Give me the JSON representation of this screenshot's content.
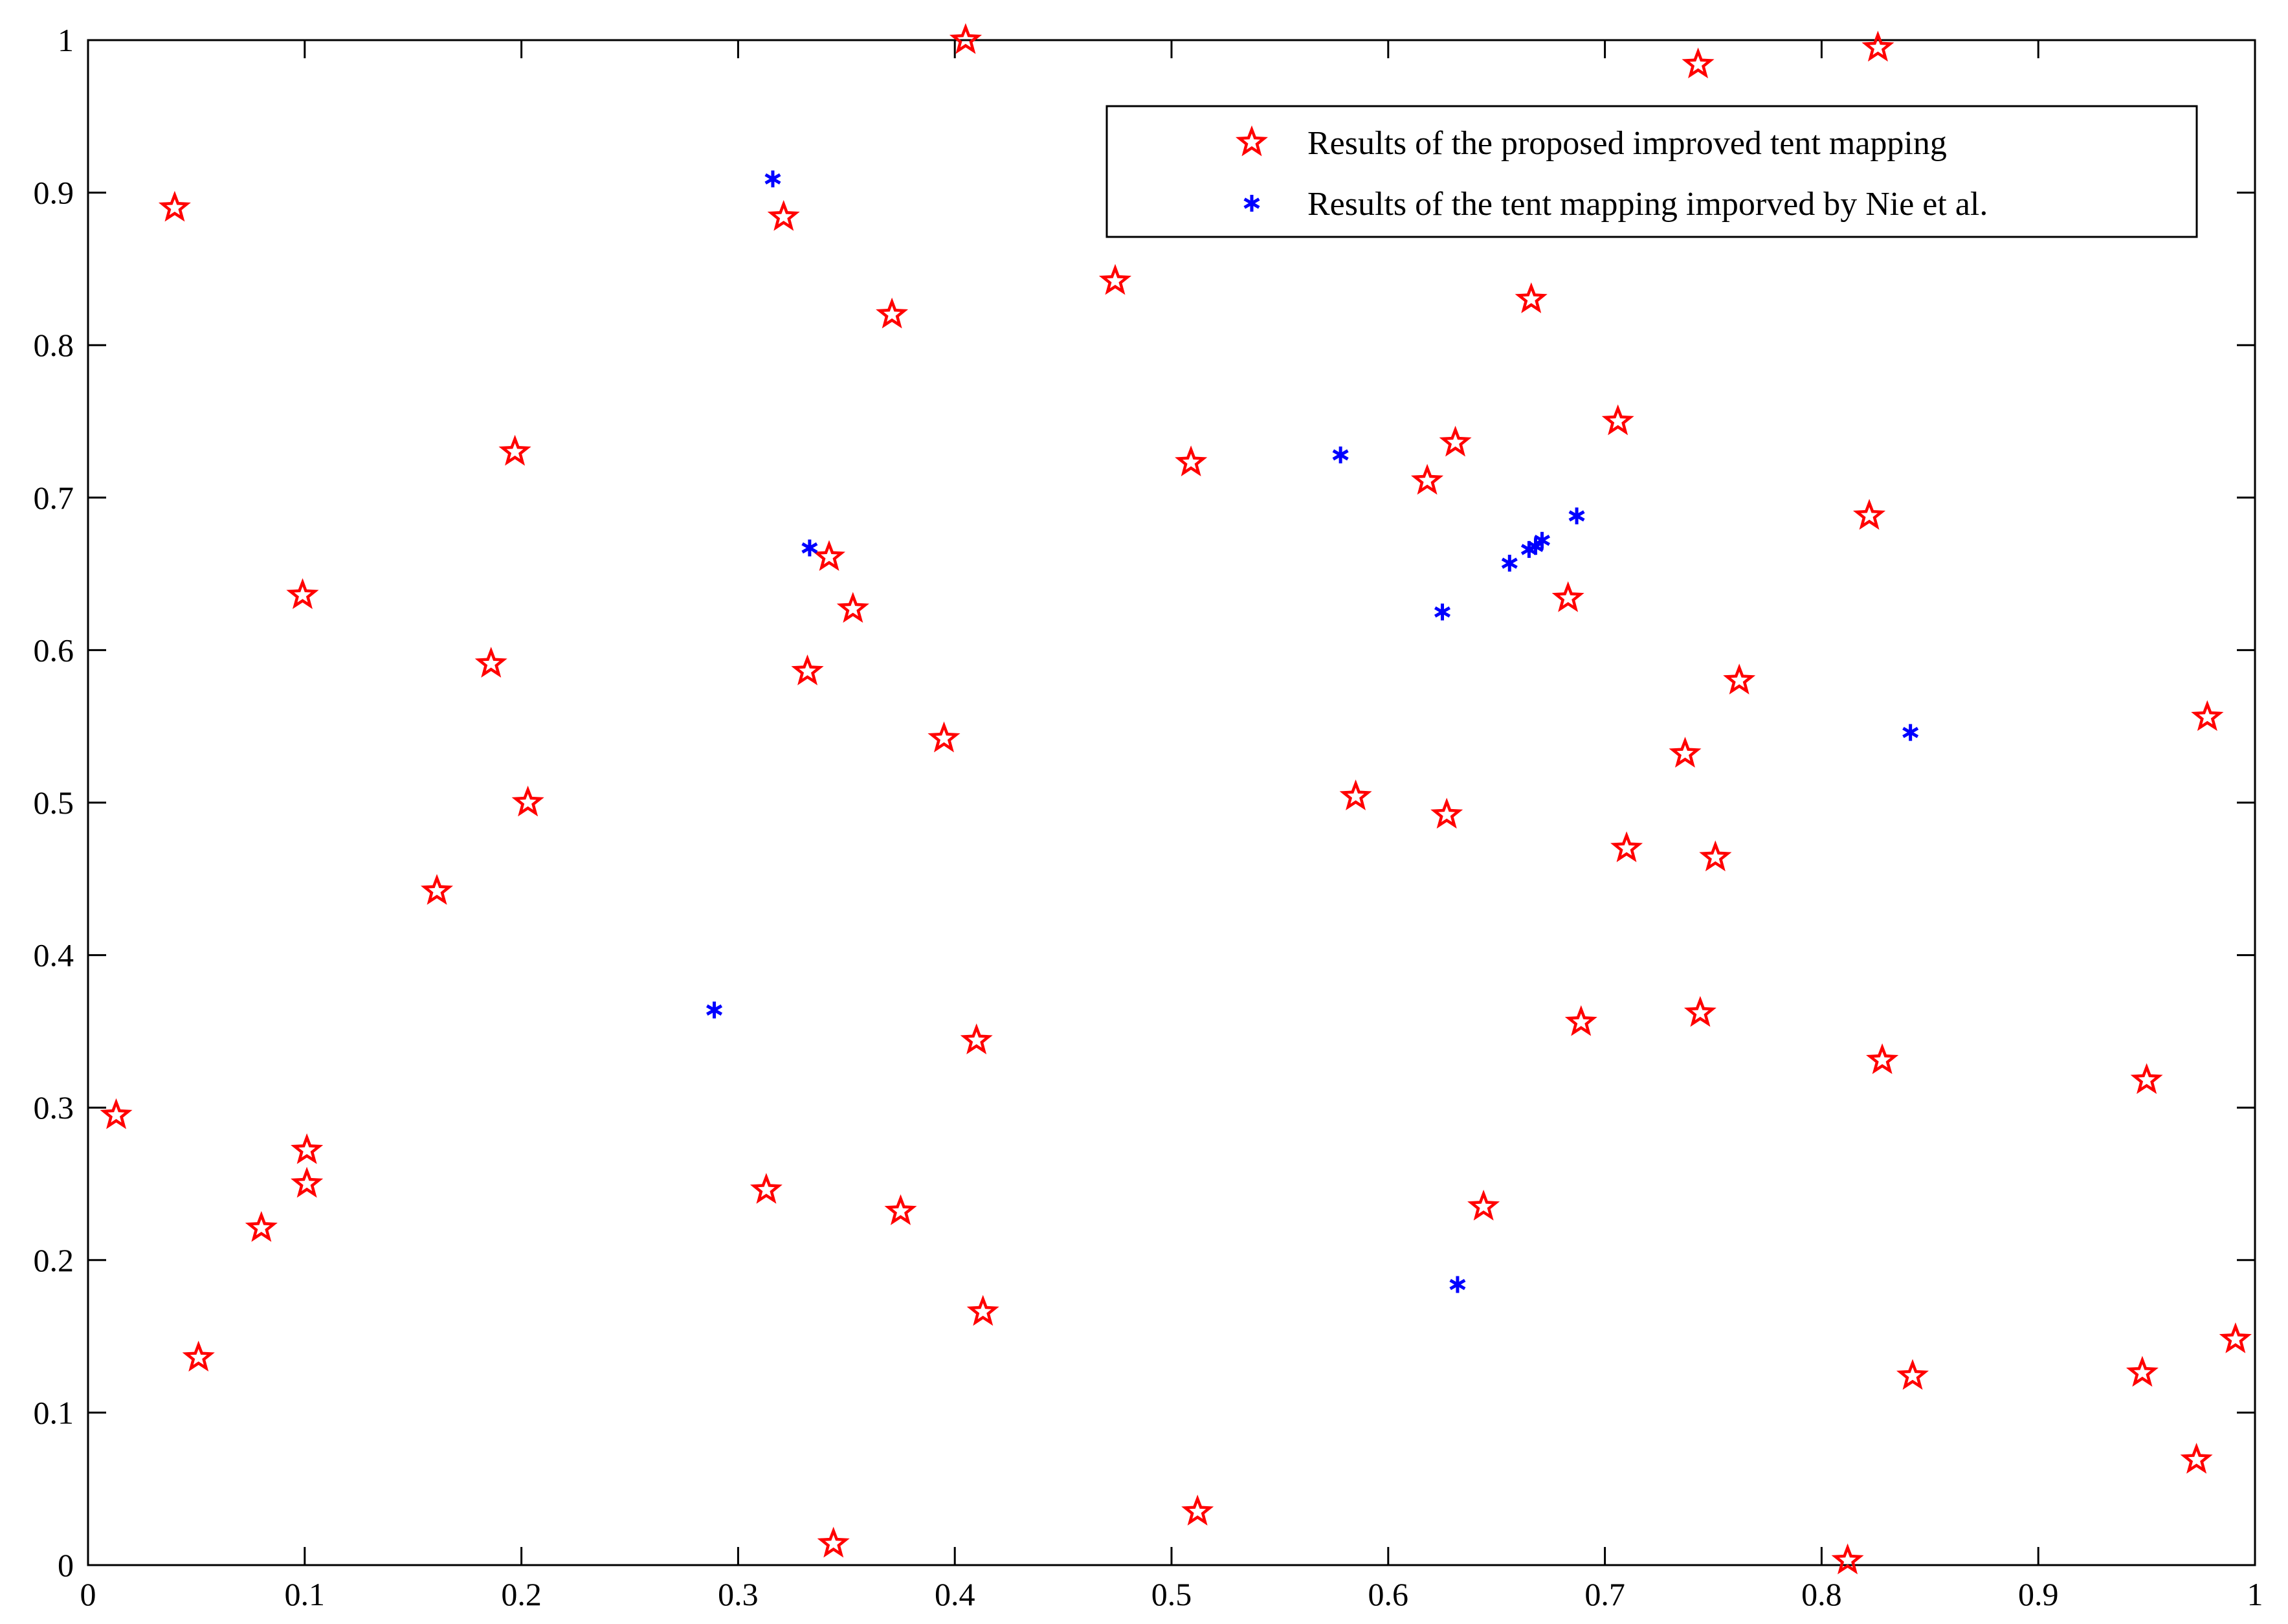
{
  "chart_data": {
    "type": "scatter",
    "title": "",
    "xlabel": "",
    "ylabel": "",
    "xlim": [
      0,
      1
    ],
    "ylim": [
      0,
      1
    ],
    "x_ticks": [
      "0",
      "0.1",
      "0.2",
      "0.3",
      "0.4",
      "0.5",
      "0.6",
      "0.7",
      "0.8",
      "0.9",
      "1"
    ],
    "y_ticks": [
      "0",
      "0.1",
      "0.2",
      "0.3",
      "0.4",
      "0.5",
      "0.6",
      "0.7",
      "0.8",
      "0.9",
      "1"
    ],
    "grid": false,
    "legend_position": "top-right",
    "series": [
      {
        "name": "Results of the proposed improved tent mapping",
        "marker": "star",
        "color": "#ff0000",
        "points": [
          [
            0.013,
            0.295
          ],
          [
            0.04,
            0.89
          ],
          [
            0.051,
            0.136
          ],
          [
            0.08,
            0.221
          ],
          [
            0.099,
            0.636
          ],
          [
            0.101,
            0.272
          ],
          [
            0.101,
            0.25
          ],
          [
            0.161,
            0.442
          ],
          [
            0.186,
            0.591
          ],
          [
            0.197,
            0.73
          ],
          [
            0.203,
            0.5
          ],
          [
            0.313,
            0.246
          ],
          [
            0.321,
            0.884
          ],
          [
            0.332,
            0.586
          ],
          [
            0.342,
            0.661
          ],
          [
            0.344,
            0.014
          ],
          [
            0.353,
            0.627
          ],
          [
            0.371,
            0.82
          ],
          [
            0.375,
            0.232
          ],
          [
            0.395,
            0.542
          ],
          [
            0.405,
            1.0
          ],
          [
            0.41,
            0.344
          ],
          [
            0.413,
            0.166
          ],
          [
            0.474,
            0.842
          ],
          [
            0.509,
            0.723
          ],
          [
            0.512,
            0.035
          ],
          [
            0.585,
            0.504
          ],
          [
            0.618,
            0.711
          ],
          [
            0.627,
            0.492
          ],
          [
            0.631,
            0.736
          ],
          [
            0.644,
            0.235
          ],
          [
            0.666,
            0.83
          ],
          [
            0.683,
            0.634
          ],
          [
            0.689,
            0.356
          ],
          [
            0.706,
            0.75
          ],
          [
            0.71,
            0.47
          ],
          [
            0.737,
            0.532
          ],
          [
            0.743,
            0.984
          ],
          [
            0.744,
            0.362
          ],
          [
            0.751,
            0.464
          ],
          [
            0.762,
            0.58
          ],
          [
            0.812,
            0.003
          ],
          [
            0.822,
            0.688
          ],
          [
            0.826,
            0.995
          ],
          [
            0.828,
            0.331
          ],
          [
            0.842,
            0.124
          ],
          [
            0.948,
            0.126
          ],
          [
            0.95,
            0.318
          ],
          [
            0.973,
            0.069
          ],
          [
            0.978,
            0.556
          ],
          [
            0.991,
            0.148
          ]
        ]
      },
      {
        "name": "Results of the tent mapping imporved by Nie et al.",
        "marker": "asterisk",
        "color": "#0000ff",
        "points": [
          [
            0.289,
            0.364
          ],
          [
            0.316,
            0.909
          ],
          [
            0.333,
            0.667
          ],
          [
            0.578,
            0.728
          ],
          [
            0.625,
            0.625
          ],
          [
            0.632,
            0.184
          ],
          [
            0.656,
            0.657
          ],
          [
            0.665,
            0.666
          ],
          [
            0.668,
            0.668
          ],
          [
            0.671,
            0.672
          ],
          [
            0.687,
            0.688
          ],
          [
            0.841,
            0.546
          ]
        ]
      }
    ]
  }
}
